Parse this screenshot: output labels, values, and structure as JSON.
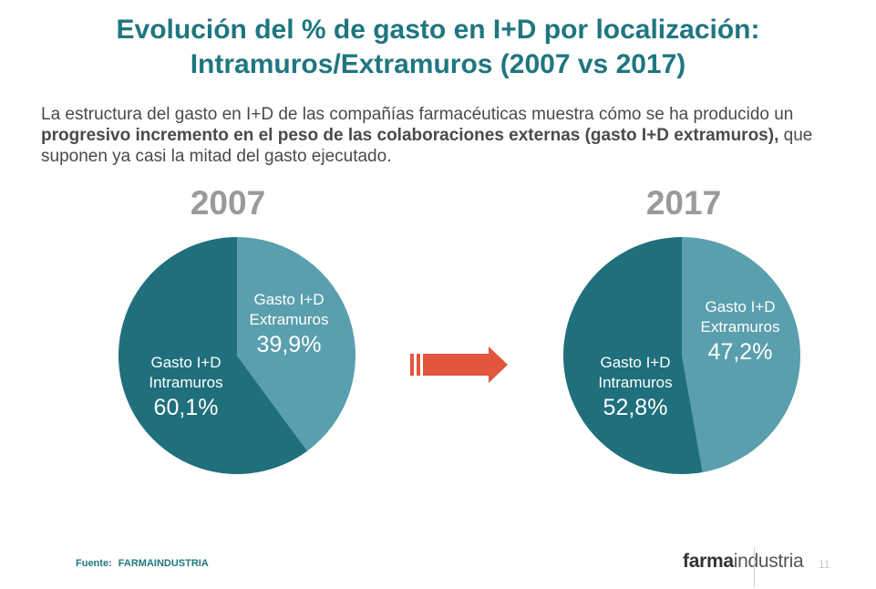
{
  "title_line1": "Evolución del % de gasto en I+D por localización:",
  "title_line2": "Intramuros/Extramuros (2007 vs 2017)",
  "intro": {
    "pre": "La estructura del gasto en I+D de las compañías farmacéuticas muestra cómo se ha producido un ",
    "bold": "progresivo incremento en el peso de las colaboraciones externas (gasto I+D extramuros),",
    "post": " que suponen ya casi la mitad del gasto ejecutado."
  },
  "source_label": "Fuente:",
  "source_org": "FARMAINDUSTRIA",
  "logo_bold": "farma",
  "logo_rest": "industria",
  "page_number": "11",
  "colors": {
    "intramuros": "#1f6f7c",
    "extramuros": "#5a9fad",
    "arrow": "#e3563d",
    "title": "#1f7680"
  },
  "chart_data": [
    {
      "type": "pie",
      "title": "2007",
      "slices": [
        {
          "label_line1": "Gasto I+D",
          "label_line2": "Extramuros",
          "value": 39.9,
          "value_label": "39,9%",
          "color": "#5a9fad"
        },
        {
          "label_line1": "Gasto I+D",
          "label_line2": "Intramuros",
          "value": 60.1,
          "value_label": "60,1%",
          "color": "#1f6f7c"
        }
      ]
    },
    {
      "type": "pie",
      "title": "2017",
      "slices": [
        {
          "label_line1": "Gasto I+D",
          "label_line2": "Extramuros",
          "value": 47.2,
          "value_label": "47,2%",
          "color": "#5a9fad"
        },
        {
          "label_line1": "Gasto I+D",
          "label_line2": "Intramuros",
          "value": 52.8,
          "value_label": "52,8%",
          "color": "#1f6f7c"
        }
      ]
    }
  ]
}
